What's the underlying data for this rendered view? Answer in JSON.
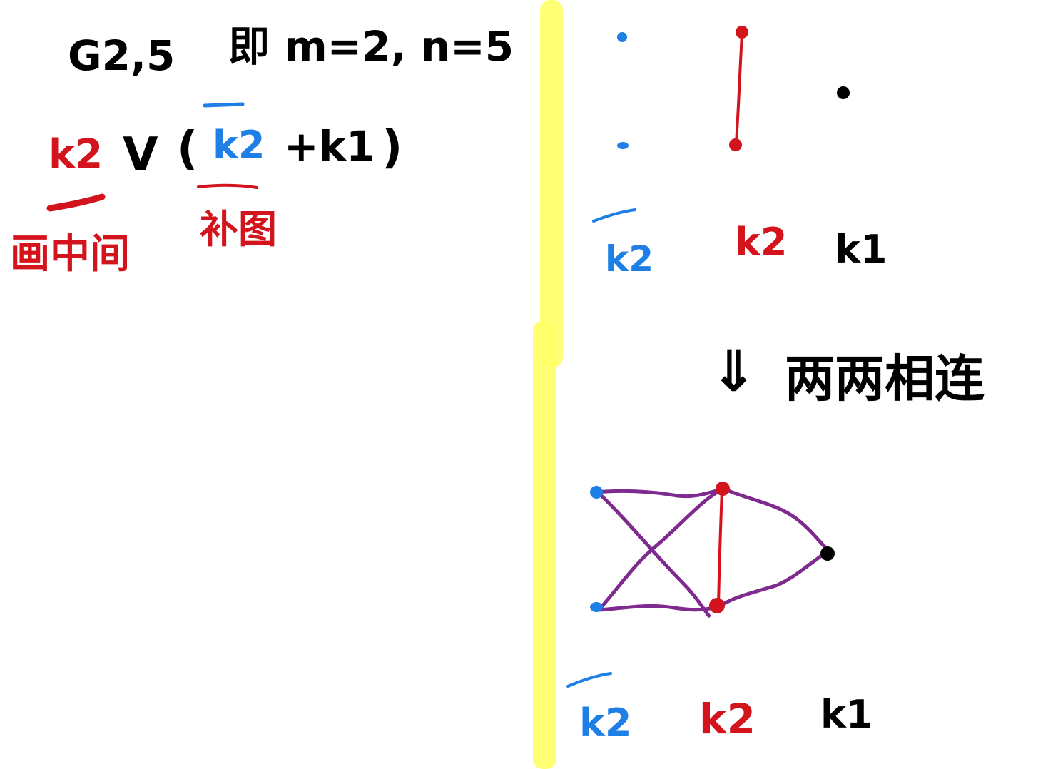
{
  "colors": {
    "black": "#000000",
    "red": "#d4141c",
    "blue": "#1e7fe6",
    "purple": "#7e2a8e",
    "highlight": "#ffff66"
  },
  "left": {
    "title": "G2,5",
    "title_note": "即 m=2, n=5",
    "formula_k2": "k2",
    "formula_vee": "V",
    "formula_open": "(",
    "formula_k2bar": "k2",
    "formula_plus_k1": "+k1",
    "formula_close": ")",
    "annotation_join": "画中间",
    "annotation_complement": "补图"
  },
  "right_top": {
    "label_k2bar": "k2",
    "label_k2": "k2",
    "label_k1": "k1"
  },
  "arrow": {
    "symbol": "⇓",
    "text": "两两相连"
  },
  "right_bottom": {
    "label_k2bar": "k2",
    "label_k2": "k2",
    "label_k1": "k1"
  }
}
